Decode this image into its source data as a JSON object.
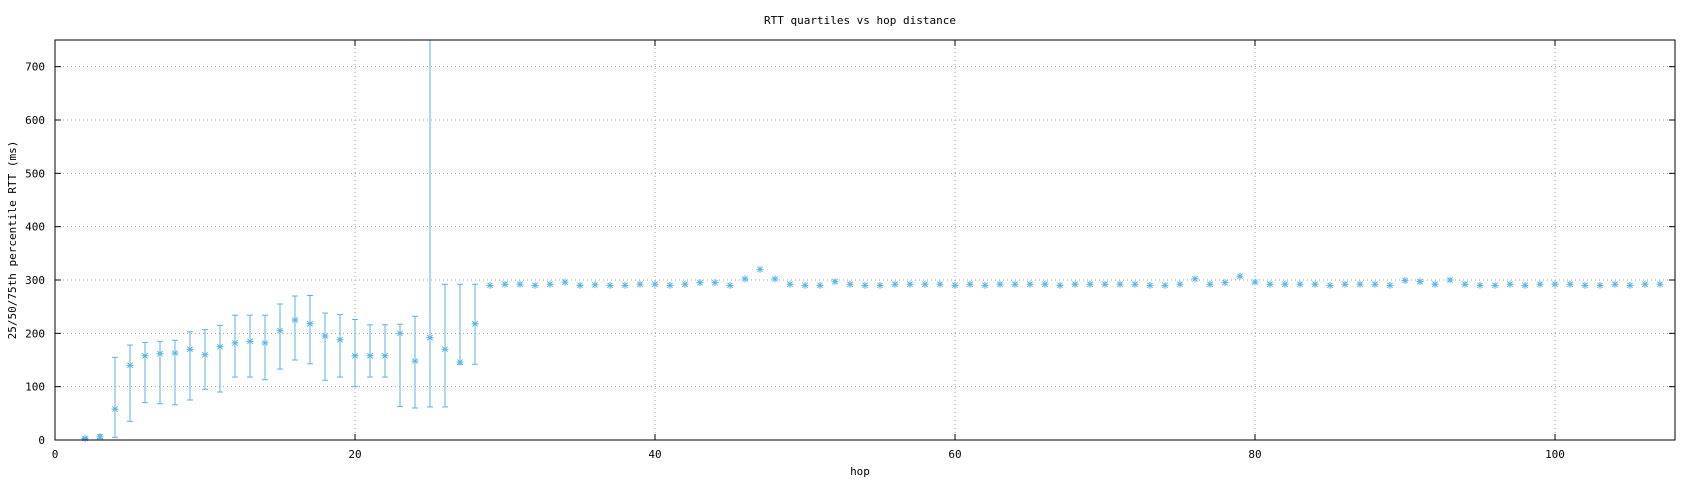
{
  "chart_data": {
    "type": "scatter",
    "title": "RTT quartiles vs hop distance",
    "xlabel": "hop",
    "ylabel": "25/50/75th percentile RTT (ms)",
    "xlim": [
      0,
      108
    ],
    "ylim": [
      0,
      750
    ],
    "xticks": [
      0,
      20,
      40,
      60,
      80,
      100
    ],
    "yticks": [
      0,
      100,
      200,
      300,
      400,
      500,
      600,
      700
    ],
    "grid": true,
    "legend": "none",
    "color": "#5bb4e5",
    "series": [
      {
        "points": [
          {
            "x": 2,
            "q1": 2,
            "median": 3,
            "q3": 4
          },
          {
            "x": 3,
            "q1": 3,
            "median": 6,
            "q3": 10
          },
          {
            "x": 4,
            "q1": 5,
            "median": 58,
            "q3": 155
          },
          {
            "x": 5,
            "q1": 35,
            "median": 140,
            "q3": 178
          },
          {
            "x": 6,
            "q1": 70,
            "median": 158,
            "q3": 183
          },
          {
            "x": 7,
            "q1": 68,
            "median": 162,
            "q3": 185
          },
          {
            "x": 8,
            "q1": 66,
            "median": 163,
            "q3": 187
          },
          {
            "x": 9,
            "q1": 75,
            "median": 170,
            "q3": 203
          },
          {
            "x": 10,
            "q1": 95,
            "median": 160,
            "q3": 207
          },
          {
            "x": 11,
            "q1": 90,
            "median": 175,
            "q3": 215
          },
          {
            "x": 12,
            "q1": 118,
            "median": 182,
            "q3": 234
          },
          {
            "x": 13,
            "q1": 118,
            "median": 185,
            "q3": 234
          },
          {
            "x": 14,
            "q1": 113,
            "median": 182,
            "q3": 234
          },
          {
            "x": 15,
            "q1": 133,
            "median": 205,
            "q3": 255
          },
          {
            "x": 16,
            "q1": 150,
            "median": 225,
            "q3": 270
          },
          {
            "x": 17,
            "q1": 143,
            "median": 218,
            "q3": 271
          },
          {
            "x": 18,
            "q1": 112,
            "median": 195,
            "q3": 238
          },
          {
            "x": 19,
            "q1": 118,
            "median": 188,
            "q3": 235
          },
          {
            "x": 20,
            "q1": 100,
            "median": 158,
            "q3": 226
          },
          {
            "x": 21,
            "q1": 118,
            "median": 158,
            "q3": 216
          },
          {
            "x": 22,
            "q1": 118,
            "median": 158,
            "q3": 216
          },
          {
            "x": 23,
            "q1": 63,
            "median": 200,
            "q3": 217
          },
          {
            "x": 24,
            "q1": 60,
            "median": 148,
            "q3": 232
          },
          {
            "x": 25,
            "q1": 62,
            "median": 192,
            "q3": 750
          },
          {
            "x": 26,
            "q1": 62,
            "median": 170,
            "q3": 292
          },
          {
            "x": 27,
            "q1": 142,
            "median": 146,
            "q3": 292
          },
          {
            "x": 28,
            "q1": 142,
            "median": 218,
            "q3": 292
          },
          {
            "x": 29,
            "median": 290
          },
          {
            "x": 30,
            "median": 292
          },
          {
            "x": 31,
            "median": 292
          },
          {
            "x": 32,
            "median": 290
          },
          {
            "x": 33,
            "median": 292
          },
          {
            "x": 34,
            "median": 296
          },
          {
            "x": 35,
            "median": 290
          },
          {
            "x": 36,
            "median": 291
          },
          {
            "x": 37,
            "median": 290
          },
          {
            "x": 38,
            "median": 290
          },
          {
            "x": 39,
            "median": 292
          },
          {
            "x": 40,
            "median": 292
          },
          {
            "x": 41,
            "median": 290
          },
          {
            "x": 42,
            "median": 292
          },
          {
            "x": 43,
            "median": 295
          },
          {
            "x": 44,
            "median": 295
          },
          {
            "x": 45,
            "median": 290
          },
          {
            "x": 46,
            "median": 302
          },
          {
            "x": 47,
            "median": 320
          },
          {
            "x": 48,
            "median": 302
          },
          {
            "x": 49,
            "median": 292
          },
          {
            "x": 50,
            "median": 290
          },
          {
            "x": 51,
            "median": 290
          },
          {
            "x": 52,
            "median": 297
          },
          {
            "x": 53,
            "median": 292
          },
          {
            "x": 54,
            "median": 290
          },
          {
            "x": 55,
            "median": 290
          },
          {
            "x": 56,
            "median": 292
          },
          {
            "x": 57,
            "median": 292
          },
          {
            "x": 58,
            "median": 292
          },
          {
            "x": 59,
            "median": 292
          },
          {
            "x": 60,
            "median": 290
          },
          {
            "x": 61,
            "median": 292
          },
          {
            "x": 62,
            "median": 290
          },
          {
            "x": 63,
            "median": 292
          },
          {
            "x": 64,
            "median": 292
          },
          {
            "x": 65,
            "median": 292
          },
          {
            "x": 66,
            "median": 292
          },
          {
            "x": 67,
            "median": 290
          },
          {
            "x": 68,
            "median": 292
          },
          {
            "x": 69,
            "median": 292
          },
          {
            "x": 70,
            "median": 292
          },
          {
            "x": 71,
            "median": 292
          },
          {
            "x": 72,
            "median": 292
          },
          {
            "x": 73,
            "median": 290
          },
          {
            "x": 74,
            "median": 290
          },
          {
            "x": 75,
            "median": 292
          },
          {
            "x": 76,
            "median": 302
          },
          {
            "x": 77,
            "median": 292
          },
          {
            "x": 78,
            "median": 295
          },
          {
            "x": 79,
            "median": 307
          },
          {
            "x": 80,
            "median": 296
          },
          {
            "x": 81,
            "median": 292
          },
          {
            "x": 82,
            "median": 292
          },
          {
            "x": 83,
            "median": 292
          },
          {
            "x": 84,
            "median": 292
          },
          {
            "x": 85,
            "median": 290
          },
          {
            "x": 86,
            "median": 292
          },
          {
            "x": 87,
            "median": 292
          },
          {
            "x": 88,
            "median": 292
          },
          {
            "x": 89,
            "median": 290
          },
          {
            "x": 90,
            "median": 299
          },
          {
            "x": 91,
            "median": 297
          },
          {
            "x": 92,
            "median": 292
          },
          {
            "x": 93,
            "median": 300
          },
          {
            "x": 94,
            "median": 292
          },
          {
            "x": 95,
            "median": 290
          },
          {
            "x": 96,
            "median": 290
          },
          {
            "x": 97,
            "median": 292
          },
          {
            "x": 98,
            "median": 290
          },
          {
            "x": 99,
            "median": 292
          },
          {
            "x": 100,
            "median": 292
          },
          {
            "x": 101,
            "median": 292
          },
          {
            "x": 102,
            "median": 290
          },
          {
            "x": 103,
            "median": 290
          },
          {
            "x": 104,
            "median": 292
          },
          {
            "x": 105,
            "median": 290
          },
          {
            "x": 106,
            "median": 292
          },
          {
            "x": 107,
            "median": 292
          }
        ]
      }
    ]
  }
}
